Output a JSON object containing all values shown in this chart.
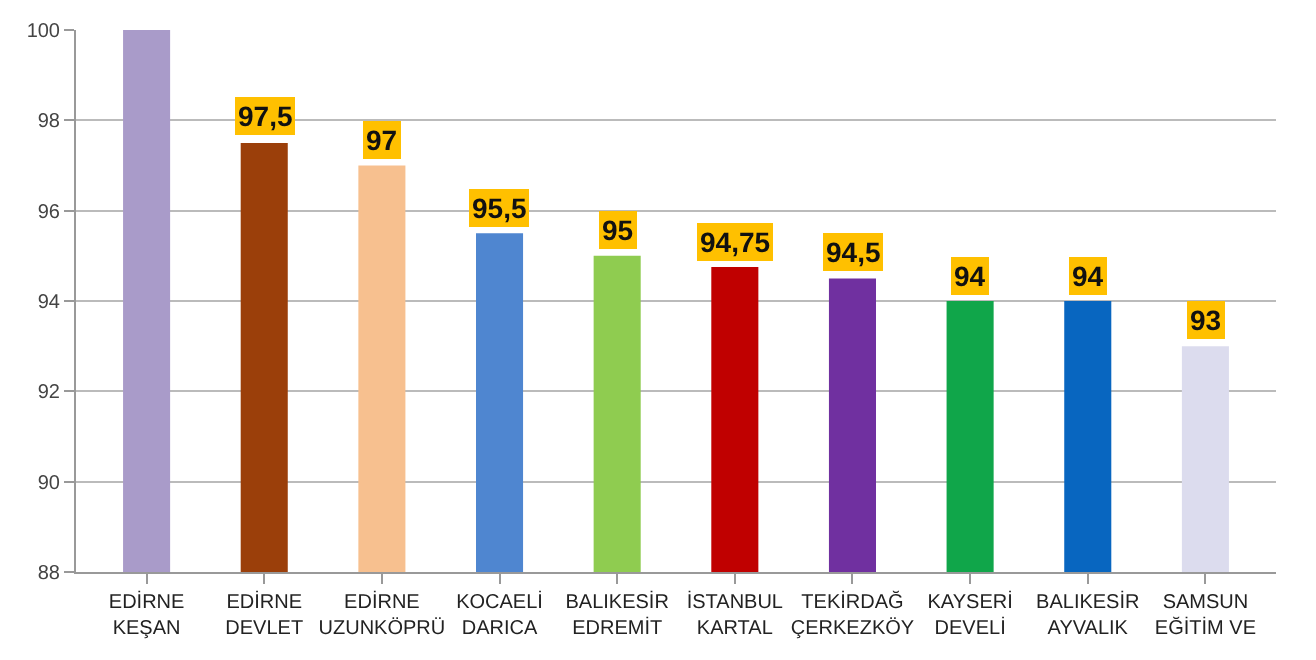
{
  "chart_data": {
    "type": "bar",
    "categories": [
      "EDİRNE\nKEŞAN",
      "EDİRNE\nDEVLET",
      "EDİRNE\nUZUNKÖPRÜ",
      "KOCAELİ\nDARICA",
      "BALIKESİR\nEDREMİT",
      "İSTANBUL\nKARTAL",
      "TEKİRDAĞ\nÇERKEZKÖY",
      "KAYSERİ\nDEVELİ",
      "BALIKESİR\nAYVALIK",
      "SAMSUN\nEĞİTİM VE"
    ],
    "values": [
      100,
      97.5,
      97,
      95.5,
      95,
      94.75,
      94.5,
      94,
      94,
      93
    ],
    "value_labels": [
      null,
      "97,5",
      "97",
      "95,5",
      "95",
      "94,75",
      "94,5",
      "94",
      "94",
      "93"
    ],
    "colors": [
      "#a99bc9",
      "#9b3f0a",
      "#f7c08f",
      "#4f86d0",
      "#8fcc50",
      "#c00000",
      "#7030a0",
      "#10a64a",
      "#0866c0",
      "#dcdcee"
    ],
    "ylim": [
      88,
      100
    ],
    "yticks": [
      88,
      90,
      92,
      94,
      96,
      98,
      100
    ],
    "grid": "y",
    "legend": false
  }
}
